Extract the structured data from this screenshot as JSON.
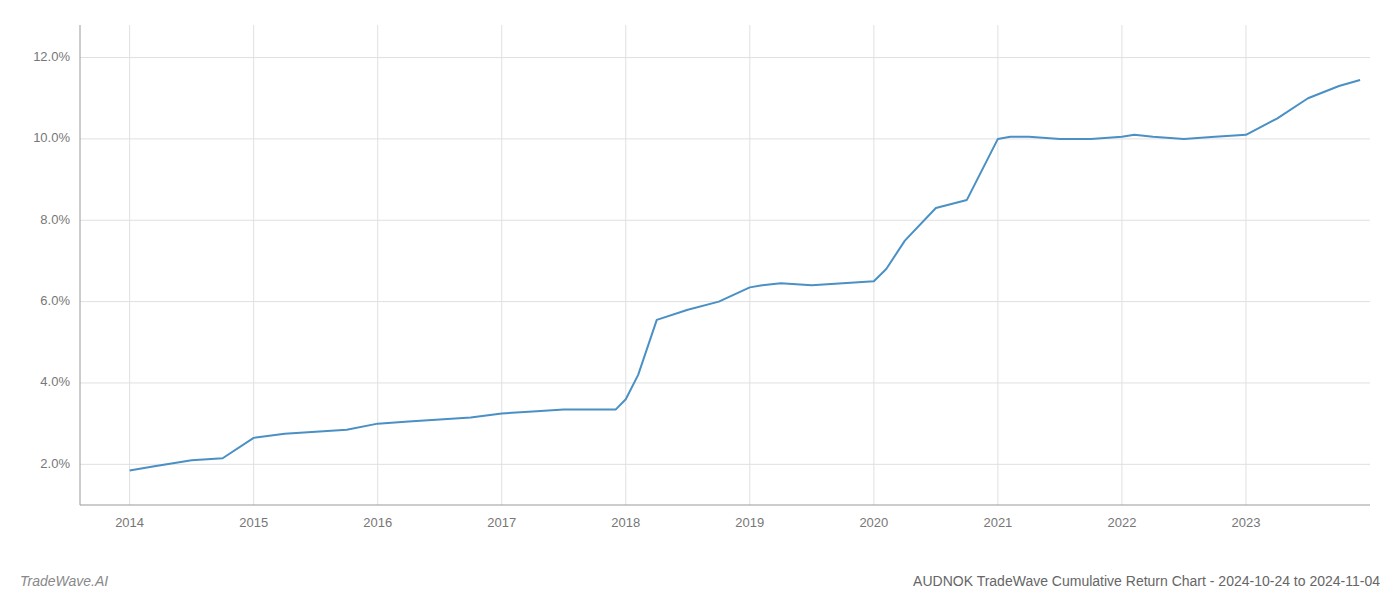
{
  "chart_data": {
    "type": "line",
    "title": "AUDNOK TradeWave Cumulative Return Chart - 2024-10-24 to 2024-11-04",
    "annotations": [
      "TradeWave.AI"
    ],
    "color": "#4a90c4",
    "grid": true,
    "x": [
      2014.0,
      2014.2,
      2014.5,
      2014.75,
      2015.0,
      2015.25,
      2015.5,
      2015.75,
      2016.0,
      2016.25,
      2016.5,
      2016.75,
      2017.0,
      2017.25,
      2017.5,
      2017.6,
      2017.75,
      2017.85,
      2017.92,
      2018.0,
      2018.1,
      2018.25,
      2018.5,
      2018.75,
      2019.0,
      2019.1,
      2019.25,
      2019.5,
      2019.75,
      2020.0,
      2020.1,
      2020.25,
      2020.5,
      2020.75,
      2021.0,
      2021.1,
      2021.25,
      2021.5,
      2021.75,
      2022.0,
      2022.1,
      2022.25,
      2022.5,
      2022.75,
      2023.0,
      2023.25,
      2023.5,
      2023.75,
      2023.92
    ],
    "values": [
      1.85,
      1.95,
      2.1,
      2.15,
      2.65,
      2.75,
      2.8,
      2.85,
      3.0,
      3.05,
      3.1,
      3.15,
      3.25,
      3.3,
      3.35,
      3.35,
      3.35,
      3.35,
      3.35,
      3.6,
      4.2,
      5.55,
      5.8,
      6.0,
      6.35,
      6.4,
      6.45,
      6.4,
      6.45,
      6.5,
      6.8,
      7.5,
      8.3,
      8.5,
      10.0,
      10.05,
      10.05,
      10.0,
      10.0,
      10.05,
      10.1,
      10.05,
      10.0,
      10.05,
      10.1,
      10.5,
      11.0,
      11.3,
      11.45
    ],
    "xlim": [
      2013.6,
      2024.0
    ],
    "ylim": [
      1.0,
      12.8
    ],
    "xticks": [
      2014,
      2015,
      2016,
      2017,
      2018,
      2019,
      2020,
      2021,
      2022,
      2023
    ],
    "yticks": [
      {
        "value": 2.0,
        "label": "2.0%"
      },
      {
        "value": 4.0,
        "label": "4.0%"
      },
      {
        "value": 6.0,
        "label": "6.0%"
      },
      {
        "value": 8.0,
        "label": "8.0%"
      },
      {
        "value": 10.0,
        "label": "10.0%"
      },
      {
        "value": 12.0,
        "label": "12.0%"
      }
    ]
  }
}
